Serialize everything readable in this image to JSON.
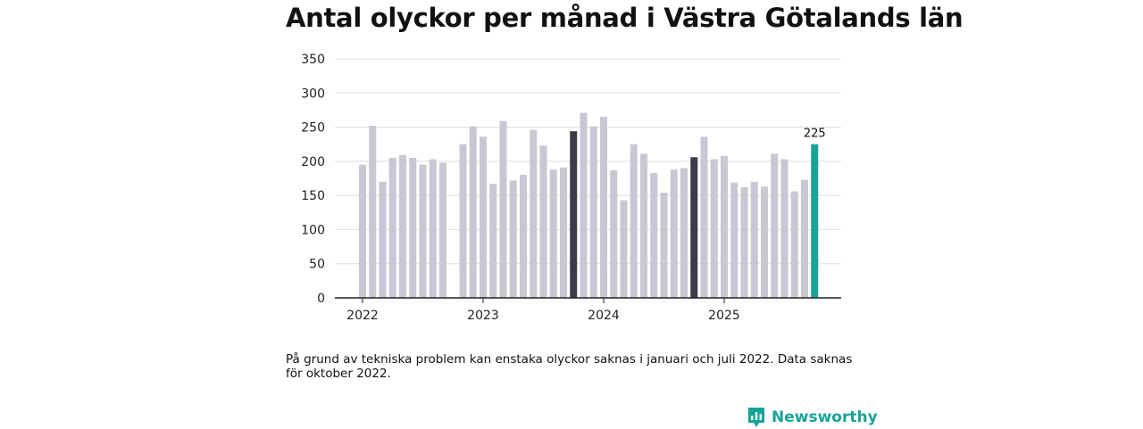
{
  "title": "Antal olyckor per månad i Västra Götalands län",
  "note": "På grund av tekniska problem kan enstaka olyckor saknas i januari och juli 2022. Data saknas för oktober 2022.",
  "brand": {
    "name": "Newsworthy",
    "icon": "newsworthy-logo-icon"
  },
  "colors": {
    "default": "#c8c7d3",
    "highlight": "#3d3b48",
    "latest": "#17a398",
    "grid": "#dddddd",
    "axis": "#222222"
  },
  "chart_data": {
    "type": "bar",
    "title": "Antal olyckor per månad i Västra Götalands län",
    "xlabel": "",
    "ylabel": "",
    "ylim": [
      0,
      350
    ],
    "yticks": [
      0,
      50,
      100,
      150,
      200,
      250,
      300,
      350
    ],
    "xticks": [
      {
        "label": "2022",
        "index": 0
      },
      {
        "label": "2023",
        "index": 12
      },
      {
        "label": "2024",
        "index": 24
      },
      {
        "label": "2025",
        "index": 36
      }
    ],
    "months": [
      "2022-01",
      "2022-02",
      "2022-03",
      "2022-04",
      "2022-05",
      "2022-06",
      "2022-07",
      "2022-08",
      "2022-09",
      "2022-10",
      "2022-11",
      "2022-12",
      "2023-01",
      "2023-02",
      "2023-03",
      "2023-04",
      "2023-05",
      "2023-06",
      "2023-07",
      "2023-08",
      "2023-09",
      "2023-10",
      "2023-11",
      "2023-12",
      "2024-01",
      "2024-02",
      "2024-03",
      "2024-04",
      "2024-05",
      "2024-06",
      "2024-07",
      "2024-08",
      "2024-09",
      "2024-10",
      "2024-11",
      "2024-12",
      "2025-01",
      "2025-02",
      "2025-03",
      "2025-04",
      "2025-05",
      "2025-06",
      "2025-07",
      "2025-08",
      "2025-09",
      "2025-10"
    ],
    "values": [
      195,
      252,
      170,
      205,
      209,
      205,
      195,
      203,
      198,
      null,
      225,
      251,
      236,
      167,
      259,
      172,
      180,
      246,
      223,
      188,
      191,
      244,
      271,
      251,
      265,
      187,
      143,
      225,
      211,
      183,
      154,
      188,
      190,
      206,
      236,
      203,
      208,
      169,
      162,
      170,
      163,
      211,
      203,
      156,
      173,
      225
    ],
    "highlighted_months": [
      "2023-10",
      "2024-10"
    ],
    "latest_month": "2025-10",
    "data_labels": [
      {
        "month": "2025-10",
        "text": "225"
      }
    ]
  }
}
